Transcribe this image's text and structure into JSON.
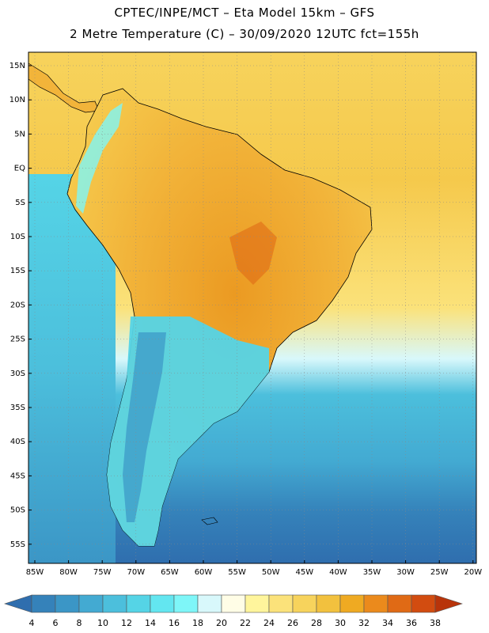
{
  "header": {
    "line1": "CPTEC/INPE/MCT –  Eta Model 15km – GFS",
    "line2": "2 Metre Temperature (C) – 30/09/2020 12UTC fct=155h"
  },
  "map": {
    "lat_ticks": [
      "15N",
      "10N",
      "5N",
      "EQ",
      "5S",
      "10S",
      "15S",
      "20S",
      "25S",
      "30S",
      "35S",
      "40S",
      "45S",
      "50S",
      "55S"
    ],
    "lon_ticks": [
      "85W",
      "80W",
      "75W",
      "70W",
      "65W",
      "60W",
      "55W",
      "50W",
      "45W",
      "40W",
      "35W",
      "30W",
      "25W",
      "20W"
    ],
    "land_color": "#f0b642",
    "andes_color": "#5fd4e0",
    "ocean_warm_color": "#f7d35c",
    "ocean_cold_color": "#3a86c0"
  },
  "colorbar": {
    "labels": [
      "4",
      "6",
      "8",
      "10",
      "12",
      "14",
      "16",
      "18",
      "20",
      "22",
      "24",
      "26",
      "28",
      "30",
      "32",
      "34",
      "36",
      "38"
    ],
    "colors": [
      "#2f6eae",
      "#3582ba",
      "#3b96c6",
      "#43aad2",
      "#4cbfdc",
      "#55d4e6",
      "#63e6f0",
      "#7ef6f8",
      "#d8f8fb",
      "#fffde6",
      "#fff59c",
      "#fbe27a",
      "#f7d35c",
      "#f2c13e",
      "#efaa22",
      "#eb8a1c",
      "#e06a15",
      "#d24c10",
      "#b8340a"
    ]
  }
}
